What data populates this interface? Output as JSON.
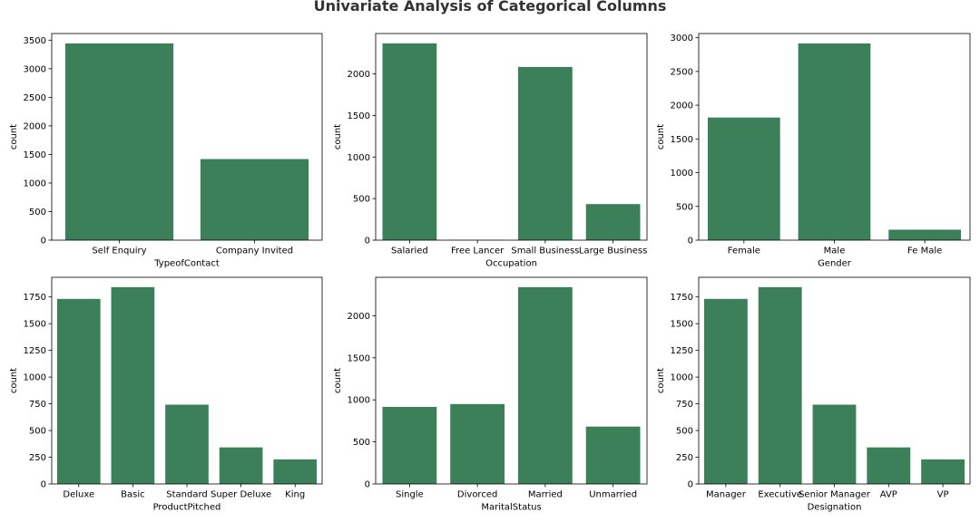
{
  "figure": {
    "title": "Univariate Analysis of Categorical Columns",
    "bar_color": "#3b8059"
  },
  "chart_data": [
    {
      "type": "bar",
      "categories": [
        "Self Enquiry",
        "Company Invited"
      ],
      "values": [
        3444,
        1419
      ],
      "xlabel": "TypeofContact",
      "ylabel": "count",
      "ylim": [
        0,
        3616
      ],
      "yticks": [
        0,
        500,
        1000,
        1500,
        2000,
        2500,
        3000,
        3500
      ]
    },
    {
      "type": "bar",
      "categories": [
        "Salaried",
        "Free Lancer",
        "Small Business",
        "Large Business"
      ],
      "values": [
        2368,
        2,
        2084,
        434
      ],
      "xlabel": "Occupation",
      "ylabel": "count",
      "ylim": [
        0,
        2486
      ],
      "yticks": [
        0,
        500,
        1000,
        1500,
        2000
      ]
    },
    {
      "type": "bar",
      "categories": [
        "Female",
        "Male",
        "Fe Male"
      ],
      "values": [
        1817,
        2916,
        155
      ],
      "xlabel": "Gender",
      "ylabel": "count",
      "ylim": [
        0,
        3062
      ],
      "yticks": [
        0,
        500,
        1000,
        1500,
        2000,
        2500,
        3000
      ]
    },
    {
      "type": "bar",
      "categories": [
        "Deluxe",
        "Basic",
        "Standard",
        "Super Deluxe",
        "King"
      ],
      "values": [
        1732,
        1842,
        742,
        342,
        230
      ],
      "xlabel": "ProductPitched",
      "ylabel": "count",
      "ylim": [
        0,
        1934
      ],
      "yticks": [
        0,
        250,
        500,
        750,
        1000,
        1250,
        1500,
        1750
      ]
    },
    {
      "type": "bar",
      "categories": [
        "Single",
        "Divorced",
        "Married",
        "Unmarried"
      ],
      "values": [
        916,
        950,
        2340,
        682
      ],
      "xlabel": "MaritalStatus",
      "ylabel": "count",
      "ylim": [
        0,
        2457
      ],
      "yticks": [
        0,
        500,
        1000,
        1500,
        2000
      ]
    },
    {
      "type": "bar",
      "categories": [
        "Manager",
        "Executive",
        "Senior Manager",
        "AVP",
        "VP"
      ],
      "values": [
        1732,
        1842,
        742,
        342,
        230
      ],
      "xlabel": "Designation",
      "ylabel": "count",
      "ylim": [
        0,
        1934
      ],
      "yticks": [
        0,
        250,
        500,
        750,
        1000,
        1250,
        1500,
        1750
      ]
    }
  ]
}
